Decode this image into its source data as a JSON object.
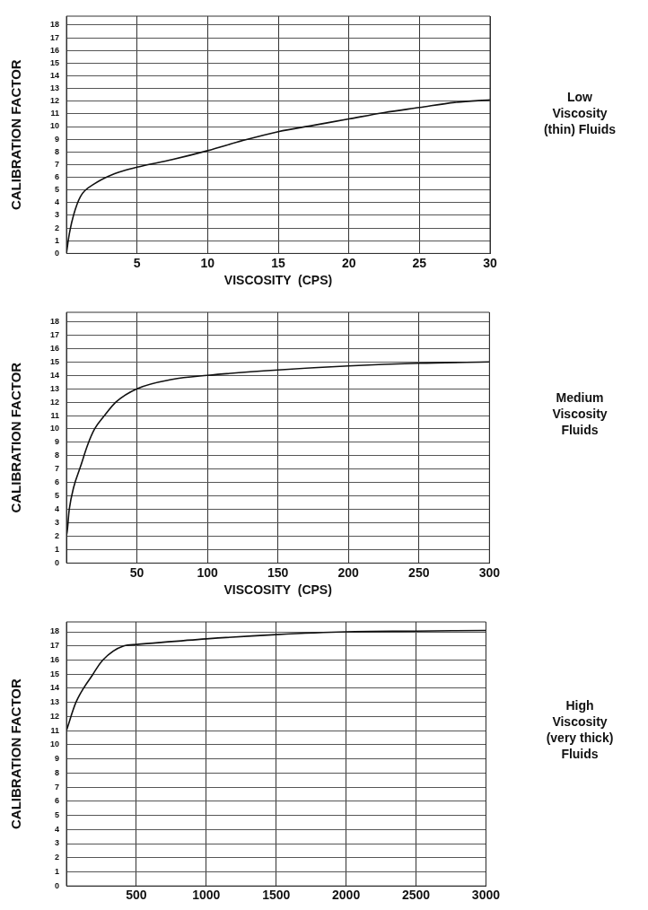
{
  "chart_data": [
    {
      "type": "line",
      "xlabel": "VISCOSITY  (CPS)",
      "ylabel": "CALIBRATION FACTOR",
      "annotations": [
        "Low Viscosity (thin) Fluids"
      ],
      "xlim": [
        0,
        30
      ],
      "ylim": [
        0,
        18.7
      ],
      "xticks": [
        5,
        10,
        15,
        20,
        25,
        30
      ],
      "yticks": [
        0,
        1,
        2,
        3,
        4,
        5,
        6,
        7,
        8,
        9,
        10,
        11,
        12,
        13,
        14,
        15,
        16,
        17,
        18
      ],
      "grid": true,
      "marker": "none",
      "line_style": "solid",
      "series": [
        {
          "color": "#111111",
          "x": [
            0,
            0.2,
            0.5,
            1,
            2,
            3,
            4,
            5,
            7.5,
            10,
            12.5,
            15,
            17.5,
            20,
            22.5,
            25,
            27.5,
            30
          ],
          "values": [
            0,
            1.5,
            3,
            4.5,
            5.5,
            6.1,
            6.5,
            6.8,
            7.4,
            8.1,
            8.9,
            9.6,
            10.1,
            10.6,
            11.1,
            11.5,
            11.9,
            12.1
          ]
        }
      ]
    },
    {
      "type": "line",
      "xlabel": "VISCOSITY  (CPS)",
      "ylabel": "CALIBRATION FACTOR",
      "annotations": [
        "Medium Viscosity Fluids"
      ],
      "xlim": [
        0,
        300
      ],
      "ylim": [
        0,
        18.7
      ],
      "xticks": [
        50,
        100,
        150,
        200,
        250,
        300
      ],
      "yticks": [
        0,
        1,
        2,
        3,
        4,
        5,
        6,
        7,
        8,
        9,
        10,
        11,
        12,
        13,
        14,
        15,
        16,
        17,
        18
      ],
      "grid": true,
      "marker": "none",
      "line_style": "solid",
      "series": [
        {
          "color": "#111111",
          "x": [
            0,
            0,
            2,
            5,
            10,
            15,
            20,
            27,
            35,
            50,
            75,
            100,
            150,
            200,
            250,
            300
          ],
          "values": [
            0,
            2,
            4,
            5.6,
            7.2,
            8.8,
            10,
            11,
            12,
            13,
            13.7,
            14,
            14.4,
            14.7,
            14.9,
            15
          ]
        }
      ]
    },
    {
      "type": "line",
      "ylabel": "CALIBRATION FACTOR",
      "annotations": [
        "High Viscosity (very thick) Fluids"
      ],
      "xlim": [
        0,
        3000
      ],
      "ylim": [
        0,
        18.7
      ],
      "xticks": [
        500,
        1000,
        1500,
        2000,
        2500,
        3000
      ],
      "yticks": [
        0,
        1,
        2,
        3,
        4,
        5,
        6,
        7,
        8,
        9,
        10,
        11,
        12,
        13,
        14,
        15,
        16,
        17,
        18
      ],
      "grid": true,
      "marker": "none",
      "line_style": "solid",
      "series": [
        {
          "color": "#111111",
          "x": [
            0,
            68,
            190,
            260,
            410,
            500,
            1000,
            1500,
            2000,
            2500,
            3000
          ],
          "values": [
            11,
            13,
            15,
            16,
            17,
            17.1,
            17.5,
            17.8,
            18,
            18.05,
            18.1
          ]
        }
      ]
    }
  ]
}
